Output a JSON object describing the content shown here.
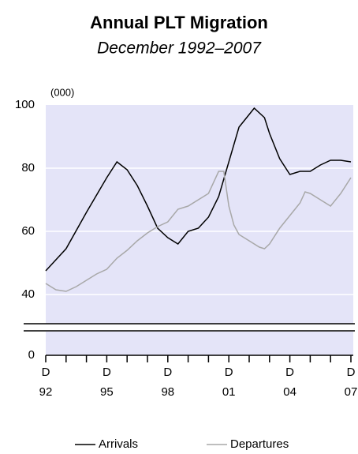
{
  "chart_data": {
    "type": "line",
    "title": "Annual PLT Migration",
    "subtitle": "December 1992–2007",
    "y_unit": "(000)",
    "xlim": [
      1992,
      2007
    ],
    "xticks": [
      {
        "value": 1992,
        "label": [
          "D",
          "92"
        ]
      },
      {
        "value": 1995,
        "label": [
          "D",
          "95"
        ]
      },
      {
        "value": 1998,
        "label": [
          "D",
          "98"
        ]
      },
      {
        "value": 2001,
        "label": [
          "D",
          "01"
        ]
      },
      {
        "value": 2004,
        "label": [
          "D",
          "04"
        ]
      },
      {
        "value": 2007,
        "label": [
          "D",
          "07"
        ]
      }
    ],
    "xminor_ticks": [
      1993,
      1994,
      1996,
      1997,
      1999,
      2000,
      2002,
      2003,
      2005,
      2006
    ],
    "ylim": [
      0,
      100
    ],
    "yticks": [
      0,
      40,
      60,
      80,
      100
    ],
    "axis_break": [
      0,
      30
    ],
    "grid": true,
    "legend": "bottom",
    "series": [
      {
        "name": "Arrivals",
        "color": "#000000",
        "x": [
          1992,
          1993,
          1994,
          1995,
          1995.5,
          1996,
          1996.5,
          1997,
          1997.5,
          1998,
          1998.5,
          1999,
          1999.5,
          2000,
          2000.5,
          2001,
          2001.5,
          2002,
          2002.25,
          2002.75,
          2003,
          2003.5,
          2004,
          2004.5,
          2005,
          2005.5,
          2006,
          2006.5,
          2007
        ],
        "values": [
          47.5,
          54.5,
          66,
          77,
          82,
          79.5,
          74.5,
          68,
          61,
          58,
          56,
          60,
          61,
          64.5,
          71,
          82,
          93,
          97,
          99,
          96,
          91,
          83,
          78,
          79,
          79,
          81,
          82.5,
          82.5,
          82
        ]
      },
      {
        "name": "Departures",
        "color": "#a8a8a8",
        "x": [
          1992,
          1992.5,
          1993,
          1993.5,
          1994,
          1994.5,
          1995,
          1995.5,
          1996,
          1996.5,
          1997,
          1997.5,
          1998,
          1998.5,
          1999,
          1999.5,
          2000,
          2000.5,
          2000.75,
          2001,
          2001.25,
          2001.5,
          2002,
          2002.5,
          2002.75,
          2003,
          2003.5,
          2004,
          2004.5,
          2004.75,
          2005,
          2005.5,
          2006,
          2006.5,
          2007
        ],
        "values": [
          43.5,
          41.5,
          41,
          42.5,
          44.5,
          46.5,
          48,
          51.5,
          54,
          57,
          59.5,
          61.5,
          63,
          67,
          68,
          70,
          72,
          79,
          79,
          68,
          62,
          59,
          57,
          55,
          54.5,
          56,
          61,
          65,
          69,
          72.5,
          72,
          70,
          68,
          72,
          77
        ]
      }
    ]
  }
}
